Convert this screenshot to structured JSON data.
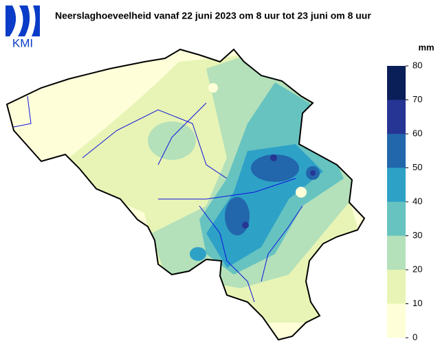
{
  "title": "Neerslaghoeveelheid vanaf 22 juni 2023 om 8 uur tot 23 juni om 8 uur",
  "logo_text": "KMI",
  "legend": {
    "unit": "mm",
    "ticks": [
      0,
      10,
      20,
      30,
      40,
      50,
      60,
      70,
      80
    ],
    "colors": [
      "#fefed9",
      "#e7f4b5",
      "#b4e0ba",
      "#67c3c0",
      "#2ea1c7",
      "#2266ab",
      "#263594",
      "#0a1e58"
    ]
  }
}
